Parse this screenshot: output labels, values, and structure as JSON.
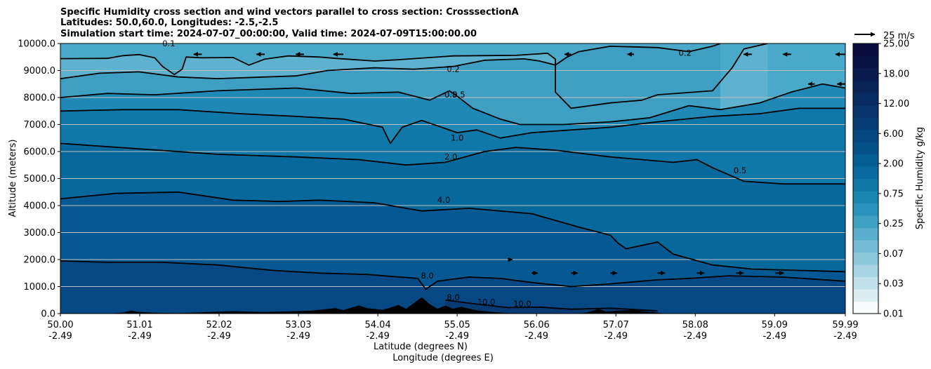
{
  "chart_data": {
    "type": "contourf",
    "title_lines": [
      "Specific Humidity cross section and wind vectors parallel to cross section: CrosssectionA",
      "Latitudes: 50.0,60.0, Longitudes: -2.5,-2.5",
      "Simulation start time: 2024-07-07_00:00:00, Valid time: 2024-07-09T15:00:00.00"
    ],
    "xlabel_lines": [
      "Latitude (degrees N)",
      "Longitude (degrees E)"
    ],
    "ylabel": "Altitude (meters)",
    "xlim": [
      50.0,
      59.99
    ],
    "ylim": [
      0,
      10000
    ],
    "x_ticks": [
      {
        "lat": "50.00",
        "lon": "-2.49",
        "value": 50.0
      },
      {
        "lat": "51.01",
        "lon": "-2.49",
        "value": 51.01
      },
      {
        "lat": "52.02",
        "lon": "-2.49",
        "value": 52.02
      },
      {
        "lat": "53.03",
        "lon": "-2.49",
        "value": 53.03
      },
      {
        "lat": "54.04",
        "lon": "-2.49",
        "value": 54.04
      },
      {
        "lat": "55.05",
        "lon": "-2.49",
        "value": 55.05
      },
      {
        "lat": "56.06",
        "lon": "-2.49",
        "value": 56.06
      },
      {
        "lat": "57.07",
        "lon": "-2.49",
        "value": 57.07
      },
      {
        "lat": "58.08",
        "lon": "-2.49",
        "value": 58.08
      },
      {
        "lat": "59.09",
        "lon": "-2.49",
        "value": 59.09
      },
      {
        "lat": "59.99",
        "lon": "-2.49",
        "value": 59.99
      }
    ],
    "y_ticks": [
      {
        "label": "0.0",
        "value": 0
      },
      {
        "label": "1000.0",
        "value": 1000
      },
      {
        "label": "2000.0",
        "value": 2000
      },
      {
        "label": "3000.0",
        "value": 3000
      },
      {
        "label": "4000.0",
        "value": 4000
      },
      {
        "label": "5000.0",
        "value": 5000
      },
      {
        "label": "6000.0",
        "value": 6000
      },
      {
        "label": "7000.0",
        "value": 7000
      },
      {
        "label": "8000.0",
        "value": 8000
      },
      {
        "label": "9000.0",
        "value": 9000
      },
      {
        "label": "10000.0",
        "value": 10000
      }
    ],
    "grid": "horizontal",
    "colorbar": {
      "label": "Specific Humidity g/kg",
      "levels": [
        "0.01",
        "0.03",
        "0.07",
        "0.25",
        "0.75",
        "2.00",
        "6.00",
        "12.00",
        "18.00",
        "25.00"
      ],
      "colors": [
        "#f7fbfc",
        "#dcedf2",
        "#c2e1eb",
        "#a8d4e3",
        "#8ec8dc",
        "#74bbd3",
        "#5aaecb",
        "#40a1c2",
        "#2a93bb",
        "#1a86b1",
        "#0f78a7",
        "#086a9e",
        "#055e94",
        "#05528a",
        "#064780",
        "#073d75",
        "#08346b",
        "#082b61",
        "#092357",
        "#0a1b4e",
        "#0b1346",
        "#0c0d3f"
      ]
    },
    "quiver_key": {
      "label": "25 m/s",
      "value": 25
    },
    "contour_labels": [
      {
        "text": "0.1",
        "x": 51.38,
        "y": 9900
      },
      {
        "text": "0.2",
        "x": 55.0,
        "y": 8950
      },
      {
        "text": "0.5",
        "x": 54.97,
        "y": 8000
      },
      {
        "text": "0.5",
        "x": 55.07,
        "y": 8000
      },
      {
        "text": "1.0",
        "x": 55.05,
        "y": 6400
      },
      {
        "text": "2.0",
        "x": 54.97,
        "y": 5700
      },
      {
        "text": "4.0",
        "x": 54.88,
        "y": 4100
      },
      {
        "text": "0.5",
        "x": 58.65,
        "y": 5200
      },
      {
        "text": "0.2",
        "x": 57.95,
        "y": 9550
      },
      {
        "text": "8.0",
        "x": 54.67,
        "y": 1300
      },
      {
        "text": "8.0",
        "x": 55.0,
        "y": 500
      },
      {
        "text": "10.0",
        "x": 55.42,
        "y": 330
      },
      {
        "text": "10.0",
        "x": 55.88,
        "y": 260
      }
    ],
    "contour_lines": [
      {
        "level": 0.1,
        "points": [
          [
            50.0,
            9440
          ],
          [
            50.6,
            9450
          ],
          [
            50.8,
            9550
          ],
          [
            51.0,
            9590
          ],
          [
            51.2,
            9470
          ],
          [
            51.3,
            9150
          ],
          [
            51.45,
            8850
          ],
          [
            51.55,
            9050
          ],
          [
            51.6,
            9500
          ],
          [
            51.8,
            9470
          ],
          [
            52.2,
            9480
          ],
          [
            52.4,
            9200
          ],
          [
            52.6,
            9420
          ],
          [
            52.9,
            9540
          ],
          [
            53.3,
            9500
          ],
          [
            53.5,
            9450
          ],
          [
            54.0,
            9350
          ],
          [
            54.3,
            9400
          ],
          [
            55.0,
            9540
          ],
          [
            55.8,
            9560
          ],
          [
            56.2,
            9640
          ],
          [
            56.3,
            9420
          ],
          [
            56.3,
            8200
          ],
          [
            56.5,
            7600
          ],
          [
            57.0,
            7800
          ],
          [
            57.4,
            7900
          ],
          [
            57.6,
            8100
          ],
          [
            58.3,
            8250
          ],
          [
            58.55,
            9100
          ],
          [
            58.7,
            9800
          ],
          [
            59.0,
            10000
          ]
        ]
      },
      {
        "level": 0.2,
        "points": [
          [
            50.0,
            8700
          ],
          [
            50.5,
            8900
          ],
          [
            51.0,
            8950
          ],
          [
            51.5,
            8760
          ],
          [
            52.0,
            8700
          ],
          [
            53.0,
            8800
          ],
          [
            53.4,
            9000
          ],
          [
            54.0,
            9100
          ],
          [
            54.5,
            9050
          ],
          [
            55.0,
            9150
          ],
          [
            55.4,
            9380
          ],
          [
            55.9,
            9430
          ],
          [
            56.1,
            9350
          ],
          [
            56.3,
            9200
          ],
          [
            56.45,
            9500
          ],
          [
            56.6,
            9700
          ],
          [
            57.0,
            9900
          ],
          [
            57.6,
            9850
          ],
          [
            58.0,
            9700
          ],
          [
            58.3,
            9900
          ],
          [
            58.4,
            10000
          ]
        ]
      },
      {
        "level": 0.5,
        "points": [
          [
            50.0,
            8000
          ],
          [
            50.6,
            8150
          ],
          [
            51.2,
            8100
          ],
          [
            52.0,
            8250
          ],
          [
            53.0,
            8350
          ],
          [
            53.7,
            8150
          ],
          [
            54.3,
            8200
          ],
          [
            54.7,
            7900
          ],
          [
            54.95,
            8250
          ],
          [
            55.05,
            8050
          ],
          [
            55.25,
            7600
          ],
          [
            55.6,
            7200
          ],
          [
            55.85,
            7000
          ],
          [
            56.4,
            7000
          ],
          [
            57.0,
            7100
          ],
          [
            57.5,
            7250
          ],
          [
            58.0,
            7700
          ],
          [
            58.4,
            7550
          ],
          [
            58.9,
            7800
          ],
          [
            59.3,
            8200
          ],
          [
            59.7,
            8500
          ],
          [
            59.99,
            8350
          ]
        ]
      },
      {
        "level": 1.0,
        "points": [
          [
            50.0,
            7500
          ],
          [
            50.8,
            7550
          ],
          [
            51.5,
            7550
          ],
          [
            52.3,
            7400
          ],
          [
            53.0,
            7300
          ],
          [
            53.6,
            7200
          ],
          [
            54.1,
            6900
          ],
          [
            54.2,
            6300
          ],
          [
            54.35,
            6900
          ],
          [
            54.6,
            7150
          ],
          [
            55.05,
            6700
          ],
          [
            55.3,
            6800
          ],
          [
            55.6,
            6500
          ],
          [
            56.0,
            6700
          ],
          [
            57.0,
            6900
          ],
          [
            57.6,
            7100
          ],
          [
            58.3,
            7300
          ],
          [
            58.9,
            7400
          ],
          [
            59.4,
            7600
          ],
          [
            59.99,
            7600
          ]
        ]
      },
      {
        "level": 2.0,
        "points": [
          [
            50.0,
            6300
          ],
          [
            51.0,
            6100
          ],
          [
            52.0,
            5900
          ],
          [
            53.0,
            5800
          ],
          [
            53.8,
            5700
          ],
          [
            54.4,
            5500
          ],
          [
            54.9,
            5600
          ],
          [
            55.4,
            6000
          ],
          [
            55.8,
            6150
          ],
          [
            56.3,
            6050
          ],
          [
            57.0,
            5800
          ],
          [
            57.8,
            5600
          ],
          [
            58.1,
            5700
          ],
          [
            58.3,
            5400
          ],
          [
            58.7,
            4900
          ],
          [
            59.2,
            4800
          ],
          [
            59.99,
            4800
          ]
        ]
      },
      {
        "level": 4.0,
        "points": [
          [
            50.0,
            4250
          ],
          [
            50.7,
            4450
          ],
          [
            51.5,
            4500
          ],
          [
            52.2,
            4200
          ],
          [
            52.8,
            4150
          ],
          [
            53.3,
            4200
          ],
          [
            54.0,
            4100
          ],
          [
            54.6,
            3800
          ],
          [
            55.2,
            3900
          ],
          [
            56.0,
            3700
          ],
          [
            56.6,
            3200
          ],
          [
            57.0,
            2900
          ],
          [
            57.1,
            2600
          ],
          [
            57.2,
            2400
          ],
          [
            57.6,
            2650
          ],
          [
            57.8,
            2200
          ],
          [
            58.05,
            2000
          ],
          [
            58.3,
            1800
          ],
          [
            58.8,
            1650
          ],
          [
            59.99,
            1550
          ]
        ]
      },
      {
        "level": 8.0,
        "points": [
          [
            50.0,
            1950
          ],
          [
            50.6,
            1900
          ],
          [
            51.3,
            1900
          ],
          [
            52.0,
            1800
          ],
          [
            52.7,
            1600
          ],
          [
            53.3,
            1500
          ],
          [
            53.9,
            1450
          ],
          [
            54.2,
            1380
          ],
          [
            54.55,
            1300
          ],
          [
            54.65,
            900
          ],
          [
            54.8,
            1200
          ],
          [
            55.2,
            1350
          ],
          [
            55.6,
            1300
          ],
          [
            56.0,
            1150
          ],
          [
            56.5,
            1000
          ],
          [
            57.0,
            1100
          ],
          [
            57.6,
            1250
          ],
          [
            58.0,
            1300
          ],
          [
            58.5,
            1400
          ],
          [
            59.2,
            1350
          ],
          [
            59.99,
            1200
          ]
        ]
      },
      {
        "level": 10.0,
        "points": [
          [
            54.9,
            500
          ],
          [
            55.3,
            350
          ],
          [
            55.7,
            220
          ],
          [
            56.1,
            240
          ],
          [
            56.5,
            160
          ],
          [
            57.0,
            200
          ],
          [
            57.6,
            100
          ]
        ]
      }
    ],
    "wind_arrows": [
      {
        "x": 51.8,
        "y": 9600,
        "u": -10
      },
      {
        "x": 52.6,
        "y": 9600,
        "u": -10
      },
      {
        "x": 53.1,
        "y": 9600,
        "u": -10
      },
      {
        "x": 53.6,
        "y": 9600,
        "u": -12
      },
      {
        "x": 56.5,
        "y": 9600,
        "u": -8
      },
      {
        "x": 57.3,
        "y": 9600,
        "u": -8
      },
      {
        "x": 58.8,
        "y": 9600,
        "u": -10
      },
      {
        "x": 59.3,
        "y": 9600,
        "u": -10
      },
      {
        "x": 59.99,
        "y": 9600,
        "u": -12
      },
      {
        "x": 59.6,
        "y": 8500,
        "u": -8
      },
      {
        "x": 59.99,
        "y": 8500,
        "u": -10
      },
      {
        "x": 55.7,
        "y": 2000,
        "u": 5
      },
      {
        "x": 56.0,
        "y": 1500,
        "u": 7
      },
      {
        "x": 56.5,
        "y": 1500,
        "u": 8
      },
      {
        "x": 57.0,
        "y": 1500,
        "u": 8
      },
      {
        "x": 57.6,
        "y": 1500,
        "u": 9
      },
      {
        "x": 58.1,
        "y": 1500,
        "u": 9
      },
      {
        "x": 58.6,
        "y": 1500,
        "u": 9
      },
      {
        "x": 59.1,
        "y": 1500,
        "u": 10
      }
    ],
    "terrain": [
      [
        50.0,
        0
      ],
      [
        50.6,
        0
      ],
      [
        50.8,
        40
      ],
      [
        50.9,
        110
      ],
      [
        51.0,
        60
      ],
      [
        51.2,
        30
      ],
      [
        51.5,
        20
      ],
      [
        51.8,
        50
      ],
      [
        52.2,
        90
      ],
      [
        52.4,
        70
      ],
      [
        52.6,
        60
      ],
      [
        52.9,
        80
      ],
      [
        53.2,
        110
      ],
      [
        53.5,
        200
      ],
      [
        53.6,
        130
      ],
      [
        53.8,
        300
      ],
      [
        53.9,
        200
      ],
      [
        54.1,
        140
      ],
      [
        54.2,
        220
      ],
      [
        54.3,
        320
      ],
      [
        54.4,
        180
      ],
      [
        54.6,
        600
      ],
      [
        54.7,
        350
      ],
      [
        54.8,
        180
      ],
      [
        54.9,
        300
      ],
      [
        55.0,
        180
      ],
      [
        55.1,
        250
      ],
      [
        55.3,
        120
      ],
      [
        55.5,
        60
      ],
      [
        55.7,
        20
      ],
      [
        56.0,
        0
      ],
      [
        56.6,
        0
      ],
      [
        56.7,
        40
      ],
      [
        56.85,
        170
      ],
      [
        56.95,
        70
      ],
      [
        57.05,
        100
      ],
      [
        57.3,
        140
      ],
      [
        57.5,
        60
      ],
      [
        57.65,
        20
      ],
      [
        57.8,
        0
      ],
      [
        59.99,
        0
      ]
    ]
  }
}
